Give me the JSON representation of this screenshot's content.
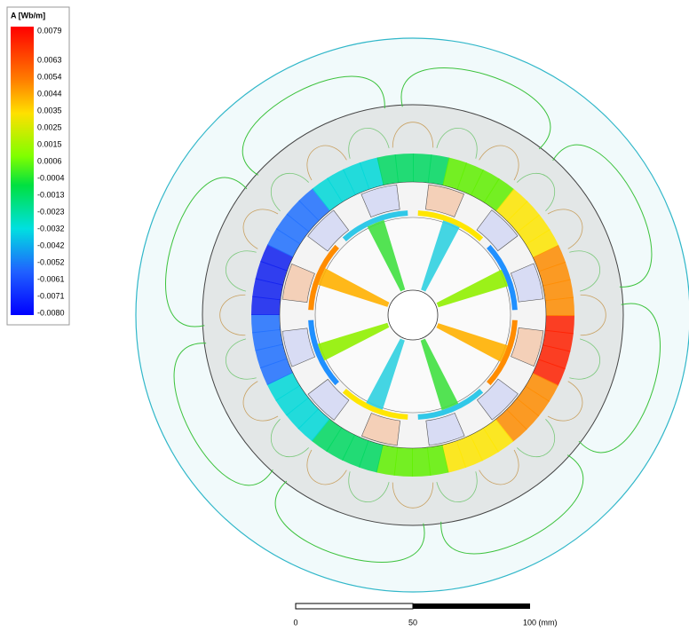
{
  "legend": {
    "title": "A [Wb/m]",
    "labels": [
      "0.0079",
      "0.0063",
      "0.0054",
      "0.0044",
      "0.0035",
      "0.0025",
      "0.0015",
      "0.0006",
      "-0.0004",
      "-0.0013",
      "-0.0023",
      "-0.0032",
      "-0.0042",
      "-0.0052",
      "-0.0061",
      "-0.0071",
      "-0.0080"
    ]
  },
  "scale_bar": {
    "labels": [
      "0",
      "50",
      "100 (mm)"
    ]
  }
}
